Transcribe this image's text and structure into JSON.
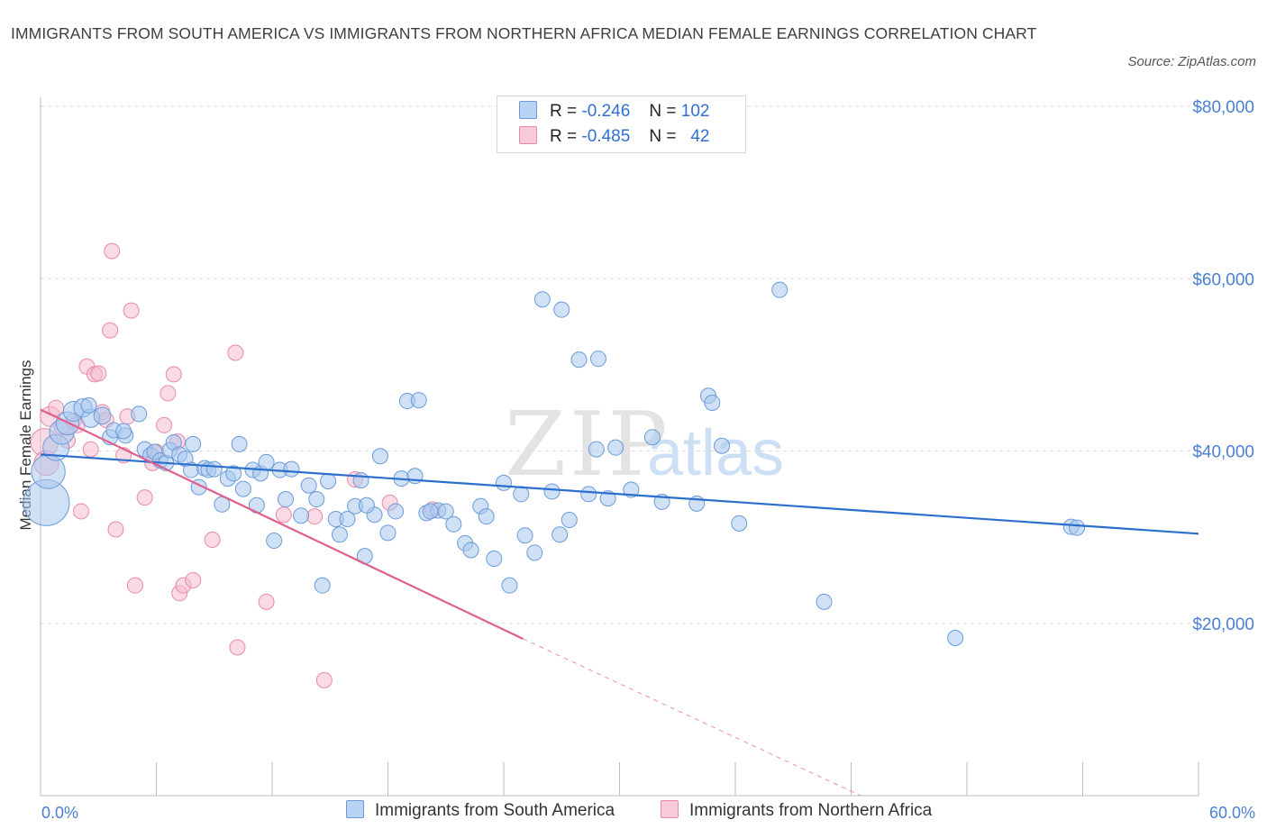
{
  "title": "IMMIGRANTS FROM SOUTH AMERICA VS IMMIGRANTS FROM NORTHERN AFRICA MEDIAN FEMALE EARNINGS CORRELATION CHART",
  "source": "Source: ZipAtlas.com",
  "watermark": {
    "zip": "ZIP",
    "atlas": "atlas"
  },
  "legend": {
    "rows": [
      {
        "r_label": "R =",
        "r_value": "-0.246",
        "n_label": "N =",
        "n_value": "102"
      },
      {
        "r_label": "R =",
        "r_value": "-0.485",
        "n_label": "N =",
        "n_value": "42"
      }
    ]
  },
  "colors": {
    "blue_fill": "#a9c8ef",
    "blue_stroke": "#6a9bd8",
    "blue_line": "#2c6fcd",
    "pink_fill": "#f6bccd",
    "pink_stroke": "#e88aa7",
    "pink_line": "#e05f8d",
    "axis_text": "#4a7fd1",
    "grid": "#dddddd"
  },
  "chart_data": {
    "type": "scatter",
    "title": "IMMIGRANTS FROM SOUTH AMERICA VS IMMIGRANTS FROM NORTHERN AFRICA MEDIAN FEMALE EARNINGS CORRELATION CHART",
    "xlabel": "",
    "ylabel": "Median Female Earnings",
    "xlim": [
      0,
      60
    ],
    "ylim": [
      0,
      80000
    ],
    "x_tick_labels": [
      "0.0%",
      "60.0%"
    ],
    "y_ticks": [
      20000,
      40000,
      60000,
      80000
    ],
    "y_tick_labels": [
      "$20,000",
      "$40,000",
      "$60,000",
      "$80,000"
    ],
    "grid": "horizontal dashed",
    "legend_position": "top-center",
    "series": [
      {
        "name": "Immigrants from South America",
        "trend": {
          "x": [
            0,
            60
          ],
          "y": [
            39600,
            30400
          ],
          "style": "solid"
        },
        "points": [
          [
            0.3,
            34000,
            3
          ],
          [
            0.4,
            37600,
            2.2
          ],
          [
            0.8,
            40400,
            1.7
          ],
          [
            1.1,
            42200,
            1.6
          ],
          [
            1.4,
            43200,
            1.5
          ],
          [
            1.7,
            44600,
            1.3
          ],
          [
            2.2,
            45000,
            1.2
          ],
          [
            2.6,
            43800,
            1.2
          ],
          [
            3.2,
            44100,
            1.1
          ],
          [
            3.6,
            41600,
            1
          ],
          [
            3.8,
            42400,
            1
          ],
          [
            4.4,
            41800,
            1
          ],
          [
            5.1,
            44300,
            1
          ],
          [
            5.4,
            40200,
            1
          ],
          [
            5.7,
            39500,
            1
          ],
          [
            5.9,
            39900,
            1
          ],
          [
            6.2,
            38900,
            1
          ],
          [
            6.5,
            38600,
            1
          ],
          [
            6.7,
            40100,
            1
          ],
          [
            6.9,
            41000,
            1
          ],
          [
            7.2,
            39600,
            1
          ],
          [
            7.5,
            39100,
            1
          ],
          [
            7.8,
            37800,
            1
          ],
          [
            7.9,
            40800,
            1
          ],
          [
            8.2,
            35800,
            1
          ],
          [
            8.5,
            38000,
            1
          ],
          [
            8.7,
            37800,
            1
          ],
          [
            9.0,
            37900,
            1
          ],
          [
            9.4,
            33800,
            1
          ],
          [
            9.7,
            36800,
            1
          ],
          [
            10.0,
            37400,
            1
          ],
          [
            10.3,
            40800,
            1
          ],
          [
            10.5,
            35600,
            1
          ],
          [
            11.0,
            37800,
            1
          ],
          [
            11.2,
            33700,
            1
          ],
          [
            11.4,
            37400,
            1
          ],
          [
            11.7,
            38700,
            1
          ],
          [
            12.1,
            29600,
            1
          ],
          [
            12.4,
            37800,
            1
          ],
          [
            12.7,
            34400,
            1
          ],
          [
            13.0,
            37900,
            1
          ],
          [
            13.5,
            32500,
            1
          ],
          [
            13.9,
            36000,
            1
          ],
          [
            14.3,
            34400,
            1
          ],
          [
            14.6,
            24400,
            1
          ],
          [
            14.9,
            36500,
            1
          ],
          [
            15.3,
            32100,
            1
          ],
          [
            15.5,
            30300,
            1
          ],
          [
            15.9,
            32100,
            1
          ],
          [
            16.3,
            33600,
            1
          ],
          [
            16.6,
            36600,
            1
          ],
          [
            16.8,
            27800,
            1
          ],
          [
            17.3,
            32600,
            1
          ],
          [
            17.6,
            39400,
            1
          ],
          [
            18.0,
            30500,
            1
          ],
          [
            18.4,
            33000,
            1
          ],
          [
            18.7,
            36800,
            1
          ],
          [
            19.0,
            45800,
            1
          ],
          [
            19.4,
            37100,
            1
          ],
          [
            19.6,
            45900,
            1
          ],
          [
            20.0,
            32800,
            1
          ],
          [
            20.6,
            33100,
            1
          ],
          [
            21.0,
            33000,
            1
          ],
          [
            21.4,
            31500,
            1
          ],
          [
            22.0,
            29300,
            1
          ],
          [
            22.3,
            28500,
            1
          ],
          [
            22.8,
            33600,
            1
          ],
          [
            23.1,
            32400,
            1
          ],
          [
            23.5,
            27500,
            1
          ],
          [
            24.0,
            36300,
            1
          ],
          [
            24.3,
            24400,
            1
          ],
          [
            24.9,
            35000,
            1
          ],
          [
            25.1,
            30200,
            1
          ],
          [
            25.6,
            28200,
            1
          ],
          [
            26.0,
            57600,
            1
          ],
          [
            26.5,
            35300,
            1
          ],
          [
            26.9,
            30300,
            1
          ],
          [
            27.0,
            56400,
            1
          ],
          [
            27.4,
            32000,
            1
          ],
          [
            27.9,
            50600,
            1
          ],
          [
            28.4,
            35000,
            1
          ],
          [
            28.8,
            40200,
            1
          ],
          [
            28.9,
            50700,
            1
          ],
          [
            29.4,
            34500,
            1
          ],
          [
            29.8,
            40400,
            1
          ],
          [
            30.6,
            35500,
            1
          ],
          [
            31.7,
            41600,
            1
          ],
          [
            32.2,
            34100,
            1
          ],
          [
            34.0,
            33900,
            1
          ],
          [
            34.6,
            46400,
            1
          ],
          [
            34.8,
            45600,
            1
          ],
          [
            35.3,
            40600,
            1
          ],
          [
            36.2,
            31600,
            1
          ],
          [
            38.3,
            58700,
            1
          ],
          [
            40.6,
            22500,
            1
          ],
          [
            47.4,
            18300,
            1
          ],
          [
            53.4,
            31200,
            1
          ],
          [
            53.7,
            31100,
            1
          ],
          [
            20.2,
            33000,
            1
          ],
          [
            16.9,
            33700,
            1
          ],
          [
            2.5,
            45300,
            1
          ],
          [
            4.3,
            42300,
            1
          ]
        ]
      },
      {
        "name": "Immigrants from Northern Africa",
        "trend": {
          "x": [
            0,
            25
          ],
          "y": [
            44800,
            18200
          ],
          "style": "solid",
          "extension_x": [
            25,
            42.5
          ],
          "extension_y": [
            18200,
            0
          ]
        },
        "points": [
          [
            0.2,
            41000,
            1.8
          ],
          [
            0.3,
            38600,
            1.6
          ],
          [
            0.5,
            44000,
            1.3
          ],
          [
            0.8,
            45000,
            1
          ],
          [
            1.1,
            42800,
            1
          ],
          [
            1.4,
            41200,
            1
          ],
          [
            1.7,
            43500,
            1
          ],
          [
            1.9,
            43000,
            1
          ],
          [
            2.1,
            33000,
            1
          ],
          [
            2.4,
            49800,
            1
          ],
          [
            2.6,
            40200,
            1
          ],
          [
            2.8,
            48900,
            1
          ],
          [
            3.0,
            49000,
            1
          ],
          [
            3.2,
            44500,
            1
          ],
          [
            3.4,
            43600,
            1
          ],
          [
            3.6,
            54000,
            1
          ],
          [
            3.7,
            63200,
            1
          ],
          [
            3.9,
            30900,
            1
          ],
          [
            4.3,
            39500,
            1
          ],
          [
            4.5,
            44000,
            1
          ],
          [
            4.7,
            56300,
            1
          ],
          [
            4.9,
            24400,
            1
          ],
          [
            5.4,
            34600,
            1
          ],
          [
            5.8,
            38600,
            1
          ],
          [
            6.0,
            39900,
            1
          ],
          [
            6.4,
            43000,
            1
          ],
          [
            6.6,
            46700,
            1
          ],
          [
            6.9,
            48900,
            1
          ],
          [
            7.1,
            41100,
            1
          ],
          [
            7.2,
            23500,
            1
          ],
          [
            7.4,
            24400,
            1
          ],
          [
            7.9,
            25000,
            1
          ],
          [
            8.9,
            29700,
            1
          ],
          [
            10.1,
            51400,
            1
          ],
          [
            10.2,
            17200,
            1
          ],
          [
            11.7,
            22500,
            1
          ],
          [
            12.6,
            32600,
            1
          ],
          [
            14.2,
            32400,
            1
          ],
          [
            14.7,
            13400,
            1
          ],
          [
            16.3,
            36700,
            1
          ],
          [
            18.1,
            34000,
            1
          ],
          [
            20.3,
            33200,
            1
          ]
        ]
      }
    ]
  },
  "bottom_legend": [
    {
      "label": "Immigrants from South America"
    },
    {
      "label": "Immigrants from Northern Africa"
    }
  ]
}
